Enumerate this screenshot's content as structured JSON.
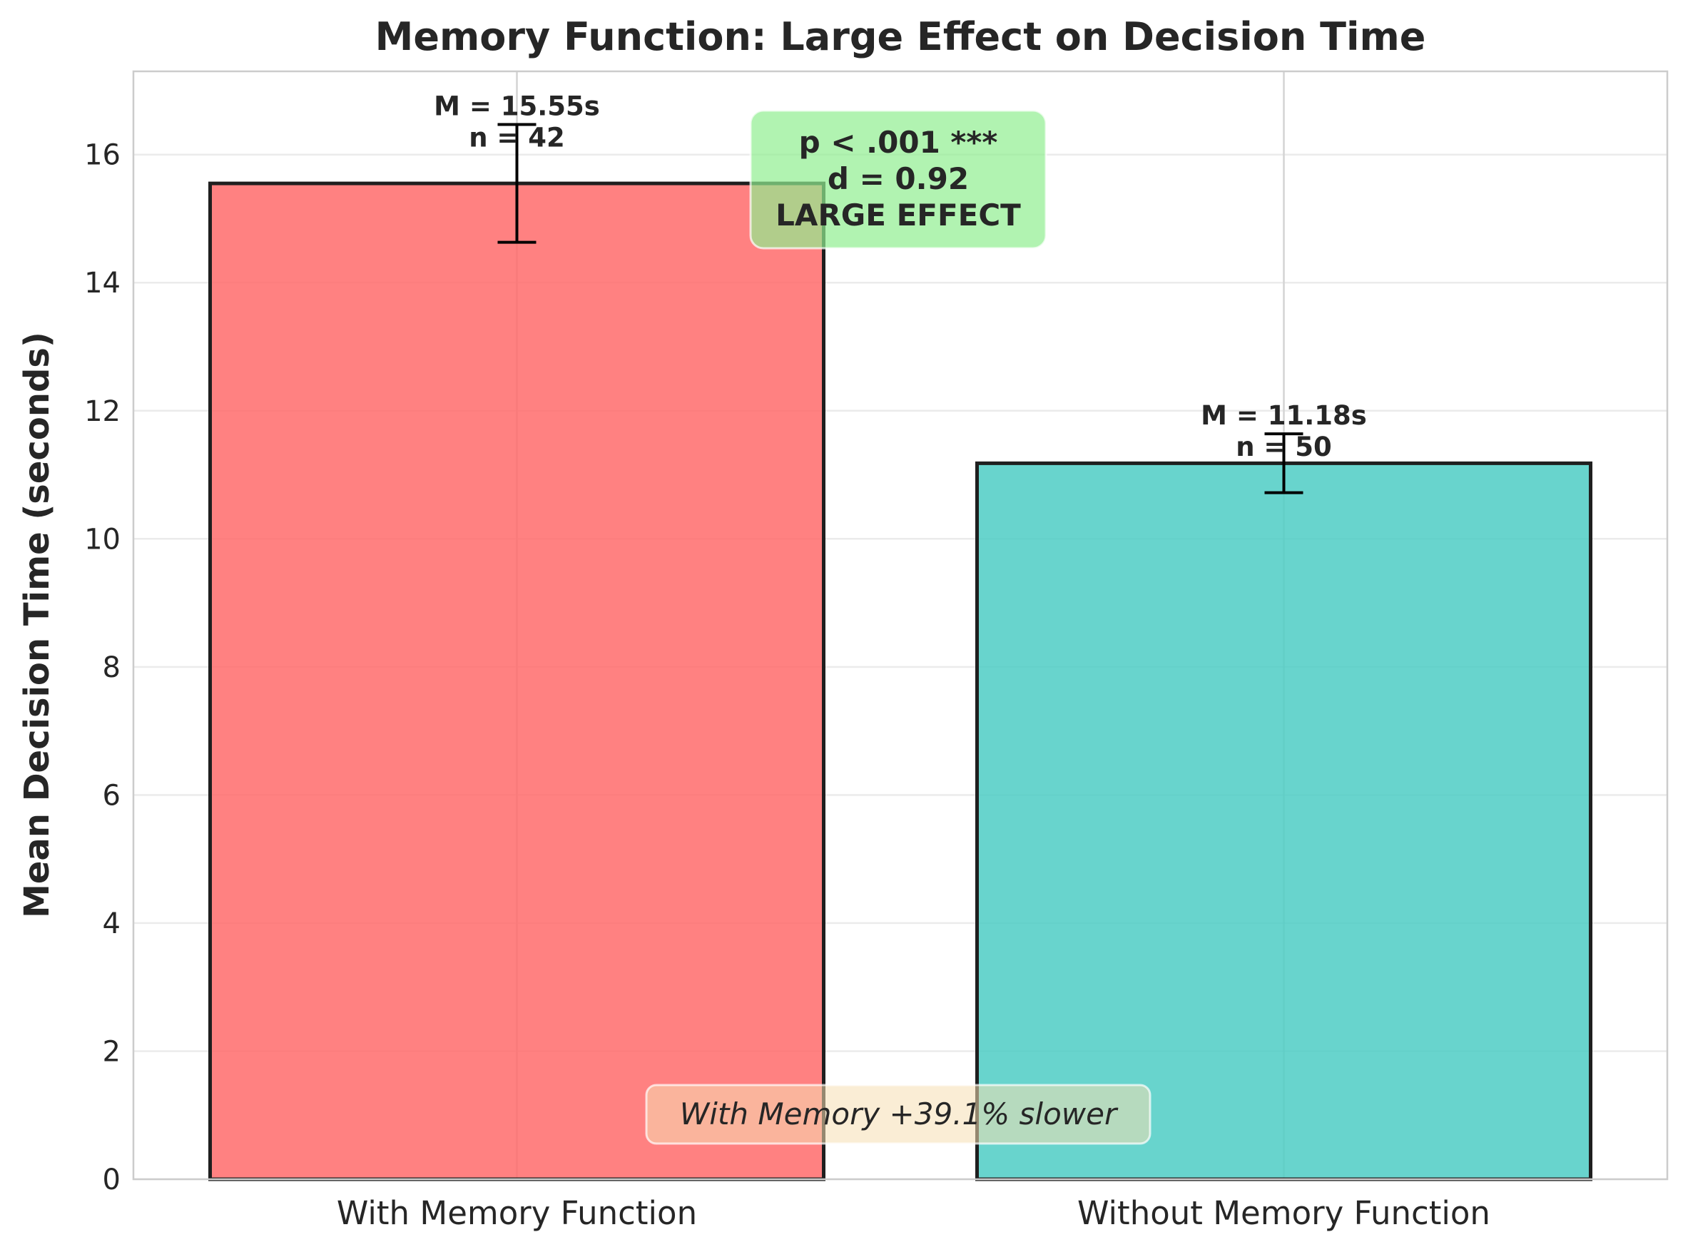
{
  "chart_data": {
    "type": "bar",
    "title": "Memory Function: Large Effect on Decision Time",
    "xlabel": "",
    "ylabel": "Mean Decision Time (seconds)",
    "ylim": [
      0,
      17.3
    ],
    "yticks": [
      0,
      2,
      4,
      6,
      8,
      10,
      12,
      14,
      16
    ],
    "grid": true,
    "categories": [
      "With Memory Function",
      "Without Memory Function"
    ],
    "values": [
      15.55,
      11.18
    ],
    "error_low": [
      14.63,
      10.72
    ],
    "error_high": [
      16.47,
      11.64
    ],
    "bar_labels": [
      {
        "mean": "M = 15.55s",
        "n": "n = 42"
      },
      {
        "mean": "M = 11.18s",
        "n": "n = 50"
      }
    ],
    "colors": [
      "#FF6B6B",
      "#4ECDC4"
    ],
    "stat_box": {
      "lines": [
        "p < .001 ***",
        "d = 0.92",
        "LARGE EFFECT"
      ],
      "color": "#90EE90"
    },
    "note": {
      "text": "With Memory +39.1% slower",
      "color": "#F5DEB3"
    }
  }
}
